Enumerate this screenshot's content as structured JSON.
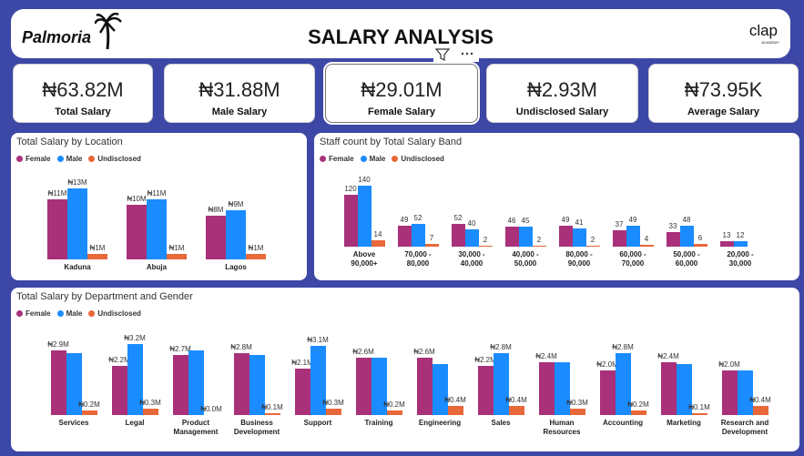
{
  "header": {
    "brand": "Palmoria",
    "title": "SALARY ANALYSIS",
    "logo": "clap",
    "logo_sub": "ACADEMY"
  },
  "kpis": [
    {
      "value": "₦63.82M",
      "label": "Total Salary"
    },
    {
      "value": "₦31.88M",
      "label": "Male Salary"
    },
    {
      "value": "₦29.01M",
      "label": "Female Salary"
    },
    {
      "value": "₦2.93M",
      "label": "Undisclosed Salary"
    },
    {
      "value": "₦73.95K",
      "label": "Average Salary"
    }
  ],
  "chart_data": [
    {
      "type": "bar",
      "title": "Total Salary by Location",
      "categories": [
        "Kaduna",
        "Abuja",
        "Lagos"
      ],
      "series": [
        {
          "name": "Female",
          "color": "#a8317a",
          "values": [
            11,
            10,
            8
          ],
          "value_labels": [
            "₦11M",
            "₦10M",
            "₦8M"
          ]
        },
        {
          "name": "Male",
          "color": "#1a8cff",
          "values": [
            13,
            11,
            9
          ],
          "value_labels": [
            "₦13M",
            "₦11M",
            "₦9M"
          ]
        },
        {
          "name": "Undisclosed",
          "color": "#e8683a",
          "values": [
            1,
            1,
            1
          ],
          "value_labels": [
            "₦1M",
            "₦1M",
            "₦1M"
          ]
        }
      ]
    },
    {
      "type": "bar",
      "title": "Staff count by Total Salary Band",
      "categories": [
        "Above 90,000+",
        "70,000 - 80,000",
        "30,000 - 40,000",
        "40,000 - 50,000",
        "80,000 - 90,000",
        "60,000 - 70,000",
        "50,000 - 60,000",
        "20,000 - 30,000"
      ],
      "series": [
        {
          "name": "Female",
          "color": "#a8317a",
          "values": [
            120,
            49,
            52,
            46,
            49,
            37,
            33,
            13
          ]
        },
        {
          "name": "Male",
          "color": "#1a8cff",
          "values": [
            140,
            52,
            40,
            45,
            41,
            49,
            48,
            12
          ]
        },
        {
          "name": "Undisclosed",
          "color": "#e8683a",
          "values": [
            14,
            7,
            2,
            2,
            2,
            4,
            6,
            null
          ]
        }
      ]
    },
    {
      "type": "bar",
      "title": "Total Salary by Department and Gender",
      "categories": [
        "Services",
        "Legal",
        "Product Management",
        "Business Development",
        "Support",
        "Training",
        "Engineering",
        "Sales",
        "Human Resources",
        "Accounting",
        "Marketing",
        "Research and Development"
      ],
      "series": [
        {
          "name": "Female",
          "color": "#a8317a",
          "values": [
            2.9,
            2.2,
            2.7,
            2.8,
            2.1,
            2.6,
            2.6,
            2.2,
            2.4,
            2.0,
            2.4,
            2.0
          ],
          "value_labels": [
            "₦2.9M",
            "₦2.2M",
            "₦2.7M",
            "₦2.8M",
            "₦2.1M",
            "₦2.6M",
            "₦2.6M",
            "₦2.2M",
            "₦2.4M",
            "₦2.0M",
            "₦2.4M",
            "₦2.0M"
          ]
        },
        {
          "name": "Male",
          "color": "#1a8cff",
          "values": [
            2.8,
            3.2,
            2.9,
            2.7,
            3.1,
            2.6,
            2.3,
            2.8,
            2.4,
            2.8,
            2.3,
            2.0
          ],
          "value_labels": [
            null,
            "₦3.2M",
            null,
            null,
            "₦3.1M",
            null,
            null,
            "₦2.8M",
            null,
            "₦2.8M",
            null,
            null
          ]
        },
        {
          "name": "Undisclosed",
          "color": "#e8683a",
          "values": [
            0.2,
            0.3,
            0.0,
            0.1,
            0.3,
            0.2,
            0.4,
            0.4,
            0.3,
            0.2,
            0.1,
            0.4
          ],
          "value_labels": [
            "₦0.2M",
            "₦0.3M",
            "₦0.0M",
            "₦0.1M",
            "₦0.3M",
            "₦0.2M",
            "₦0.4M",
            "₦0.4M",
            "₦0.3M",
            "₦0.2M",
            "₦0.1M",
            "₦0.4M"
          ]
        }
      ]
    }
  ]
}
